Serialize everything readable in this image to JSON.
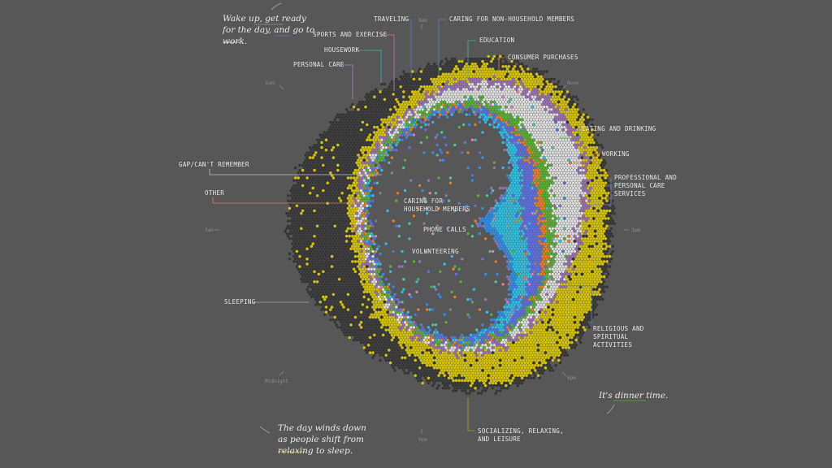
{
  "colors": {
    "background": "#575757",
    "sleeping": "#353535",
    "socializing": "#d4c200",
    "personal_care": "#9a6fb2",
    "housework": "#dcdcdc",
    "eating": "#56b030",
    "working": "#f07a1e",
    "blue": "#5c6ee0",
    "cyan": "#2ebee0",
    "mid_blue": "#2e8ce6",
    "pink": "#e07ab8",
    "teal": "#4cc3a0"
  },
  "clock": [
    "9am",
    "Noon",
    "3pm",
    "6pm",
    "9pm",
    "Midnight",
    "3am",
    "6am"
  ],
  "labels": {
    "traveling": "TRAVELING",
    "caring_non_household": "CARING FOR NON-HOUSEHOLD MEMBERS",
    "sports": "SPORTS AND EXERCISE",
    "education": "EDUCATION",
    "housework": "HOUSEWORK",
    "consumer": "CONSUMER PURCHASES",
    "personal_care": "PERSONAL CARE",
    "eating": "EATING AND DRINKING",
    "working": "WORKING",
    "professional": "PROFESSIONAL AND\nPERSONAL CARE\nSERVICES",
    "gap": "GAP/CAN'T REMEMBER",
    "other": "OTHER",
    "caring_household": "CARING FOR\nHOUSEHOLD MEMBERS",
    "phone": "PHONE CALLS",
    "volunteering": "VOLUNTEERING",
    "sleeping": "SLEEPING",
    "religious": "RELIGIOUS AND\nSPIRITUAL\nACTIVITIES",
    "socializing": "SOCIALIZING, RELAXING,\nAND LEISURE"
  },
  "notes": {
    "morning": "Wake up, get ready\nfor the day, and go to\nwork.",
    "dinner": "It's dinner time.",
    "night": "The day winds down\nas people shift from\nrelaxing to sleep."
  }
}
